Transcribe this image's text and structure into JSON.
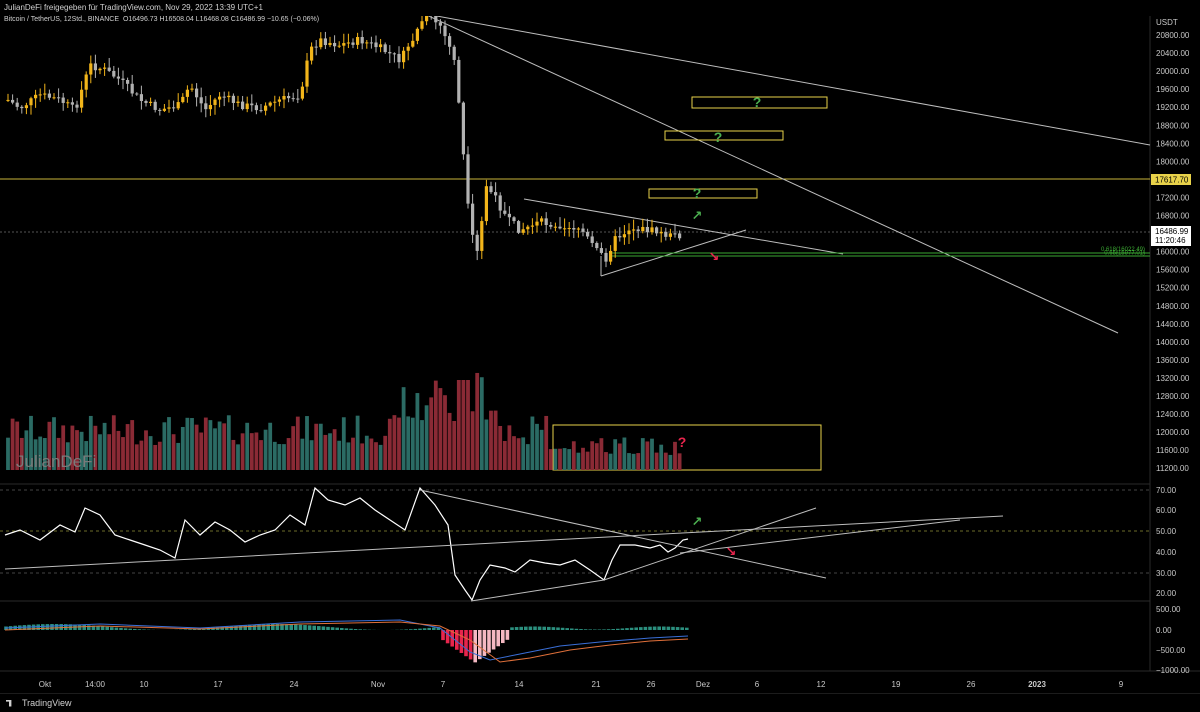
{
  "header": {
    "shared_by": "JulianDeFi freigegeben für TradingView.com, Nov 29, 2022 13:39 UTC+1",
    "symbol": "Bitcoin / TetherUS, 12Std., BINANCE",
    "ohlc": "O16496.73 H16508.04 L16468.08 C16486.99 −10.65 (−0.06%)"
  },
  "price_axis": {
    "currency": "USDT",
    "ticks": [
      "20800.00",
      "20400.00",
      "20000.00",
      "19600.00",
      "19200.00",
      "18800.00",
      "18400.00",
      "18000.00",
      "17600.00",
      "17200.00",
      "16800.00",
      "16400.00",
      "16000.00",
      "15600.00",
      "15200.00",
      "14800.00",
      "14400.00",
      "14000.00",
      "13600.00",
      "13200.00",
      "12800.00",
      "12400.00",
      "12000.00",
      "11600.00",
      "11200.00"
    ],
    "level_label": "17617.70",
    "last_price": "16486.99",
    "countdown": "11:20:46"
  },
  "fib_labels": [
    "0.618(16022.49)",
    "0.65(15977.01)"
  ],
  "watermark": "JulianDeFi",
  "annotations": {
    "question": "?",
    "up_arrow": "↗",
    "down_arrow": "↘"
  },
  "rsi_axis": {
    "ticks": [
      "70.00",
      "60.00",
      "50.00",
      "40.00",
      "30.00",
      "20.00"
    ]
  },
  "macd_axis": {
    "ticks": [
      "500.00",
      "0.00",
      "−500.00",
      "−1000.00"
    ]
  },
  "time_axis": {
    "ticks": [
      "Okt",
      "14:00",
      "10",
      "17",
      "24",
      "Nov",
      "7",
      "14",
      "21",
      "26",
      "Dez",
      "6",
      "12",
      "19",
      "26",
      "2023",
      "9"
    ]
  },
  "footer": {
    "brand": "TradingView"
  },
  "colors": {
    "bull": "#f2b51a",
    "bear": "#b2b2b2",
    "vol_up": "#2b6b64",
    "vol_down": "#8a2a35",
    "box": "#e8d24a",
    "arrow_up": "#4caf50",
    "arrow_down": "#e8254d",
    "line": "#b8b8b8",
    "fib": "#3aa832"
  }
}
